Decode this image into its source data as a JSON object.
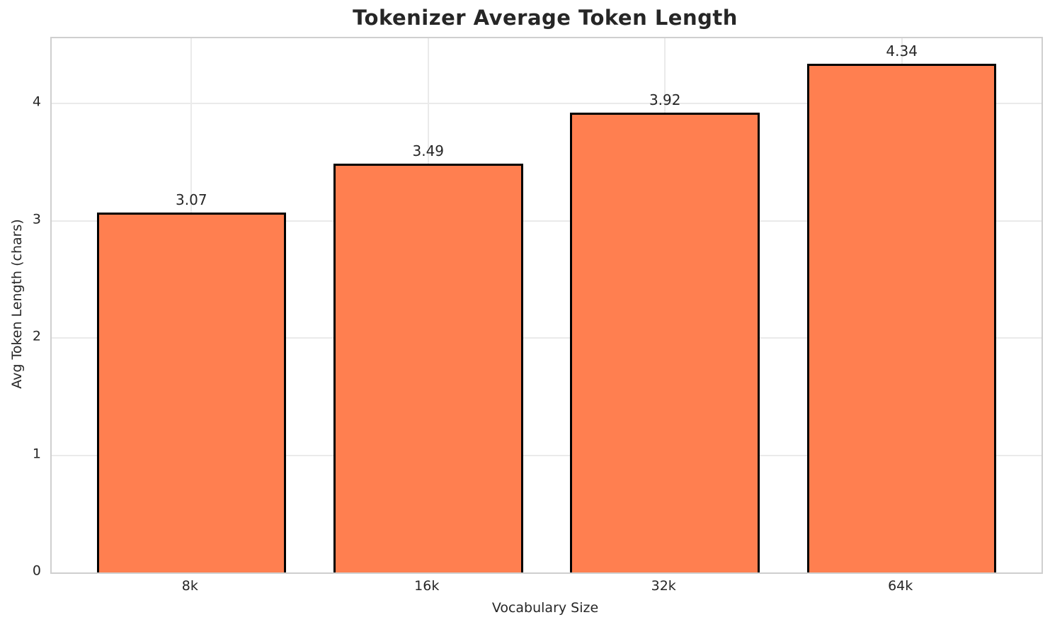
{
  "colors": {
    "bar_fill": "#FF7F50",
    "bar_edge": "#000000",
    "grid": "#EAEAEA",
    "spine": "#CFCFCF",
    "text": "#262626",
    "background": "#FFFFFF"
  },
  "chart_data": {
    "type": "bar",
    "title": "Tokenizer Average Token Length",
    "xlabel": "Vocabulary Size",
    "ylabel": "Avg Token Length (chars)",
    "categories": [
      "8k",
      "16k",
      "32k",
      "64k"
    ],
    "values": [
      3.07,
      3.49,
      3.92,
      4.34
    ],
    "bar_labels": [
      "3.07",
      "3.49",
      "3.92",
      "4.34"
    ],
    "yticks": [
      0,
      1,
      2,
      3,
      4
    ],
    "ytick_labels": [
      "0",
      "1",
      "2",
      "3",
      "4"
    ],
    "ylim": [
      0,
      4.557
    ],
    "xlim": [
      -0.59,
      3.59
    ],
    "bar_width": 0.8,
    "grid": true,
    "legend_position": null
  }
}
